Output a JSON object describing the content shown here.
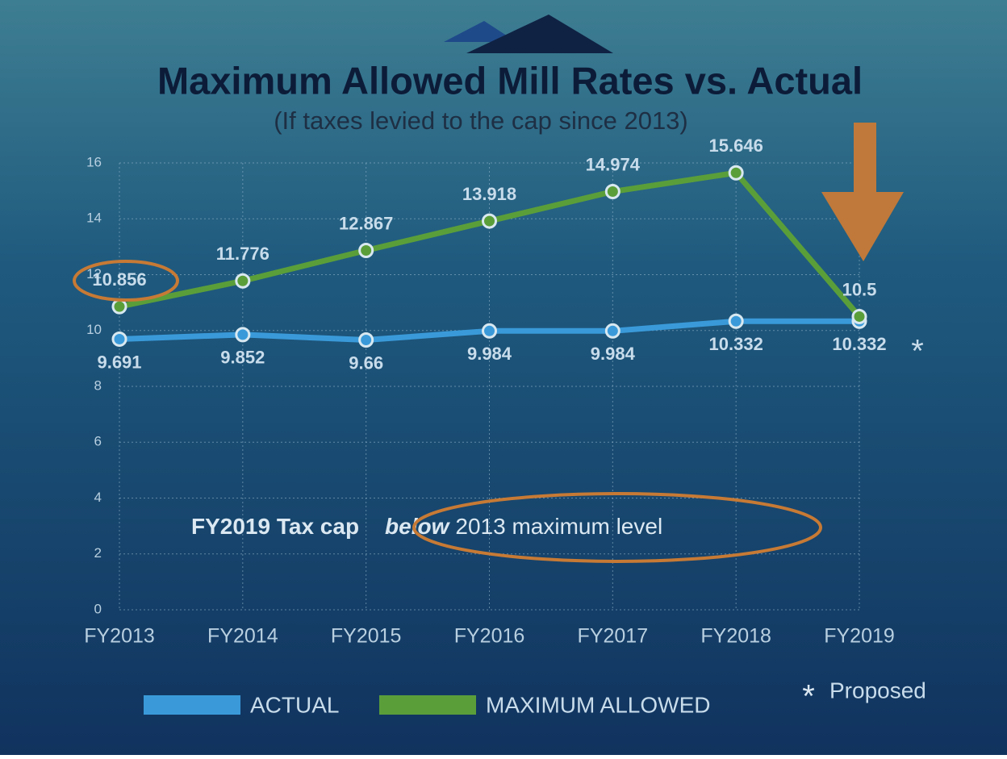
{
  "chart_data": {
    "type": "line",
    "title": "Maximum Allowed Mill Rates vs. Actual",
    "subtitle": "(If taxes levied to the cap since 2013)",
    "categories": [
      "FY2013",
      "FY2014",
      "FY2015",
      "FY2016",
      "FY2017",
      "FY2018",
      "FY2019"
    ],
    "series": [
      {
        "name": "ACTUAL",
        "color": "#3a9ad9",
        "values": [
          9.691,
          9.852,
          9.66,
          9.984,
          9.984,
          10.332,
          10.332
        ]
      },
      {
        "name": "MAXIMUM ALLOWED",
        "color": "#5a9e3a",
        "values": [
          10.856,
          11.776,
          12.867,
          13.918,
          14.974,
          15.646,
          10.5
        ]
      }
    ],
    "ylim": [
      0,
      16
    ],
    "yticks": [
      0,
      2,
      4,
      6,
      8,
      10,
      12,
      14,
      16
    ],
    "grid": true,
    "annotation_parts": [
      "FY2019 Tax cap",
      "below",
      "2013 maximum level"
    ],
    "proposed_marker": "*",
    "proposed_note": "Proposed"
  }
}
